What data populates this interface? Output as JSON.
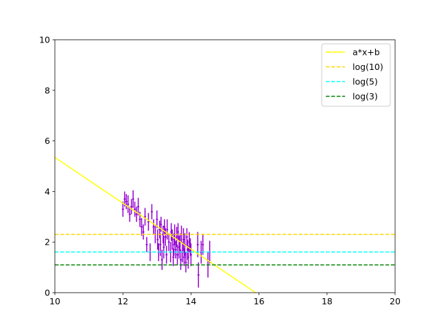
{
  "chart_data": {
    "type": "scatter",
    "title": "",
    "xlabel": "",
    "ylabel": "",
    "xlim": [
      10,
      20
    ],
    "ylim": [
      0,
      10
    ],
    "xticks": [
      10,
      12,
      14,
      16,
      18,
      20
    ],
    "yticks": [
      0,
      2,
      4,
      6,
      8,
      10
    ],
    "grid": false,
    "legend_position": "top-right",
    "scatter_color": "#9400d3",
    "points": [
      {
        "x": 12.0,
        "y": 3.3,
        "yerr": 0.3
      },
      {
        "x": 12.05,
        "y": 3.7,
        "yerr": 0.3
      },
      {
        "x": 12.1,
        "y": 3.6,
        "yerr": 0.3
      },
      {
        "x": 12.15,
        "y": 3.5,
        "yerr": 0.35
      },
      {
        "x": 12.2,
        "y": 3.1,
        "yerr": 0.3
      },
      {
        "x": 12.25,
        "y": 3.4,
        "yerr": 0.3
      },
      {
        "x": 12.3,
        "y": 3.7,
        "yerr": 0.35
      },
      {
        "x": 12.35,
        "y": 3.3,
        "yerr": 0.3
      },
      {
        "x": 12.4,
        "y": 3.1,
        "yerr": 0.3
      },
      {
        "x": 12.45,
        "y": 3.4,
        "yerr": 0.35
      },
      {
        "x": 12.5,
        "y": 2.9,
        "yerr": 0.3
      },
      {
        "x": 12.55,
        "y": 2.6,
        "yerr": 0.35
      },
      {
        "x": 12.6,
        "y": 2.4,
        "yerr": 0.3
      },
      {
        "x": 12.65,
        "y": 3.0,
        "yerr": 0.35
      },
      {
        "x": 12.7,
        "y": 1.9,
        "yerr": 0.3
      },
      {
        "x": 12.75,
        "y": 2.8,
        "yerr": 0.35
      },
      {
        "x": 12.8,
        "y": 1.6,
        "yerr": 0.35
      },
      {
        "x": 12.85,
        "y": 3.2,
        "yerr": 0.3
      },
      {
        "x": 12.9,
        "y": 2.6,
        "yerr": 0.3
      },
      {
        "x": 12.95,
        "y": 2.3,
        "yerr": 0.35
      },
      {
        "x": 13.0,
        "y": 2.9,
        "yerr": 0.35
      },
      {
        "x": 13.02,
        "y": 2.1,
        "yerr": 0.4
      },
      {
        "x": 13.05,
        "y": 1.6,
        "yerr": 0.35
      },
      {
        "x": 13.08,
        "y": 2.5,
        "yerr": 0.35
      },
      {
        "x": 13.1,
        "y": 1.9,
        "yerr": 0.45
      },
      {
        "x": 13.12,
        "y": 2.7,
        "yerr": 0.3
      },
      {
        "x": 13.15,
        "y": 1.3,
        "yerr": 0.4
      },
      {
        "x": 13.18,
        "y": 2.3,
        "yerr": 0.35
      },
      {
        "x": 13.2,
        "y": 1.8,
        "yerr": 0.45
      },
      {
        "x": 13.22,
        "y": 2.6,
        "yerr": 0.3
      },
      {
        "x": 13.25,
        "y": 2.2,
        "yerr": 0.35
      },
      {
        "x": 13.28,
        "y": 1.5,
        "yerr": 0.35
      },
      {
        "x": 13.3,
        "y": 2.5,
        "yerr": 0.4
      },
      {
        "x": 13.35,
        "y": 2.0,
        "yerr": 0.35
      },
      {
        "x": 13.4,
        "y": 1.6,
        "yerr": 0.4
      },
      {
        "x": 13.42,
        "y": 2.4,
        "yerr": 0.35
      },
      {
        "x": 13.45,
        "y": 2.1,
        "yerr": 0.4
      },
      {
        "x": 13.48,
        "y": 1.4,
        "yerr": 0.35
      },
      {
        "x": 13.5,
        "y": 1.9,
        "yerr": 0.45
      },
      {
        "x": 13.52,
        "y": 2.3,
        "yerr": 0.4
      },
      {
        "x": 13.55,
        "y": 1.7,
        "yerr": 0.35
      },
      {
        "x": 13.58,
        "y": 2.2,
        "yerr": 0.4
      },
      {
        "x": 13.6,
        "y": 1.5,
        "yerr": 0.4
      },
      {
        "x": 13.62,
        "y": 2.4,
        "yerr": 0.35
      },
      {
        "x": 13.65,
        "y": 1.8,
        "yerr": 0.45
      },
      {
        "x": 13.68,
        "y": 2.0,
        "yerr": 0.35
      },
      {
        "x": 13.7,
        "y": 1.3,
        "yerr": 0.4
      },
      {
        "x": 13.72,
        "y": 2.3,
        "yerr": 0.35
      },
      {
        "x": 13.75,
        "y": 1.6,
        "yerr": 0.4
      },
      {
        "x": 13.78,
        "y": 2.1,
        "yerr": 0.45
      },
      {
        "x": 13.8,
        "y": 1.4,
        "yerr": 0.35
      },
      {
        "x": 13.82,
        "y": 1.9,
        "yerr": 0.45
      },
      {
        "x": 13.85,
        "y": 1.2,
        "yerr": 0.4
      },
      {
        "x": 13.88,
        "y": 2.2,
        "yerr": 0.35
      },
      {
        "x": 13.9,
        "y": 1.7,
        "yerr": 0.4
      },
      {
        "x": 13.92,
        "y": 1.4,
        "yerr": 0.45
      },
      {
        "x": 13.95,
        "y": 2.0,
        "yerr": 0.4
      },
      {
        "x": 13.98,
        "y": 1.8,
        "yerr": 0.35
      },
      {
        "x": 14.0,
        "y": 1.5,
        "yerr": 0.45
      },
      {
        "x": 14.2,
        "y": 1.9,
        "yerr": 0.5
      },
      {
        "x": 14.22,
        "y": 0.7,
        "yerr": 0.5
      },
      {
        "x": 14.3,
        "y": 1.6,
        "yerr": 0.45
      },
      {
        "x": 14.35,
        "y": 1.9,
        "yerr": 0.4
      },
      {
        "x": 14.5,
        "y": 1.1,
        "yerr": 0.5
      },
      {
        "x": 14.55,
        "y": 1.6,
        "yerr": 0.45
      }
    ],
    "series": [
      {
        "name": "a*x+b",
        "kind": "line",
        "style": "solid",
        "color": "#ffff00",
        "x": [
          10,
          15.9
        ],
        "y": [
          5.35,
          0
        ]
      },
      {
        "name": "log(10)",
        "kind": "line",
        "style": "dashed",
        "color": "#ffd700",
        "x": [
          10,
          20
        ],
        "y": [
          2.3026,
          2.3026
        ]
      },
      {
        "name": "log(5)",
        "kind": "line",
        "style": "dashed",
        "color": "#00ffff",
        "x": [
          10,
          20
        ],
        "y": [
          1.6094,
          1.6094
        ]
      },
      {
        "name": "log(3)",
        "kind": "line",
        "style": "dashed",
        "color": "#008000",
        "x": [
          10,
          20
        ],
        "y": [
          1.0986,
          1.0986
        ]
      }
    ]
  }
}
